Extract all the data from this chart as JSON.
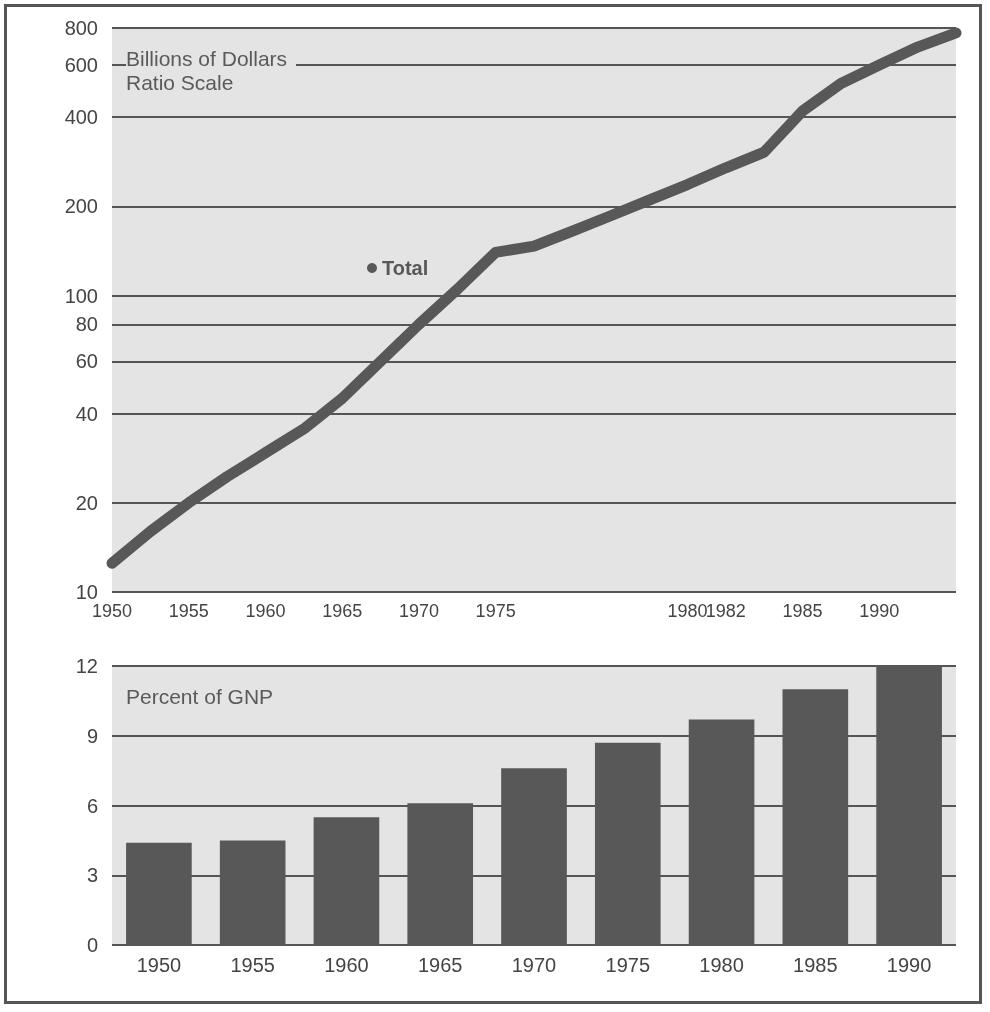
{
  "chart_data": [
    {
      "type": "line",
      "ylabel": "Billions of Dollars Ratio Scale",
      "categories": [
        "1950",
        null,
        "1955",
        null,
        "1960",
        null,
        "1965",
        null,
        "1970",
        null,
        "1975",
        null,
        null,
        null,
        null,
        "1980",
        "1982",
        null,
        "1985",
        null,
        "1990",
        null,
        null
      ],
      "series": [
        {
          "name": "Total",
          "color": "#585858",
          "values": [
            12.5,
            16,
            20,
            24.5,
            29.5,
            35.5,
            45,
            60,
            80,
            105,
            140,
            147,
            165,
            186,
            210,
            237,
            270,
            305,
            420,
            520,
            600,
            690,
            770
          ]
        }
      ],
      "log": "y",
      "ylim": [
        10,
        800
      ],
      "yticks": [
        10,
        20,
        40,
        60,
        80,
        100,
        200,
        400,
        600,
        800
      ],
      "grid": "y",
      "legend": "top left"
    },
    {
      "type": "bar",
      "ylabel": "Percent of GNP",
      "categories": [
        "1950",
        "1955",
        "1960",
        "1965",
        "1970",
        "1975",
        "1980",
        "1985",
        "1990"
      ],
      "series": [
        {
          "color": "#585858",
          "values": [
            4.4,
            4.5,
            5.5,
            6.1,
            7.6,
            8.7,
            9.7,
            11,
            12
          ]
        }
      ],
      "ylim": [
        0,
        12
      ],
      "yticks": [
        0,
        3,
        6,
        9,
        12
      ],
      "grid": "y"
    }
  ]
}
